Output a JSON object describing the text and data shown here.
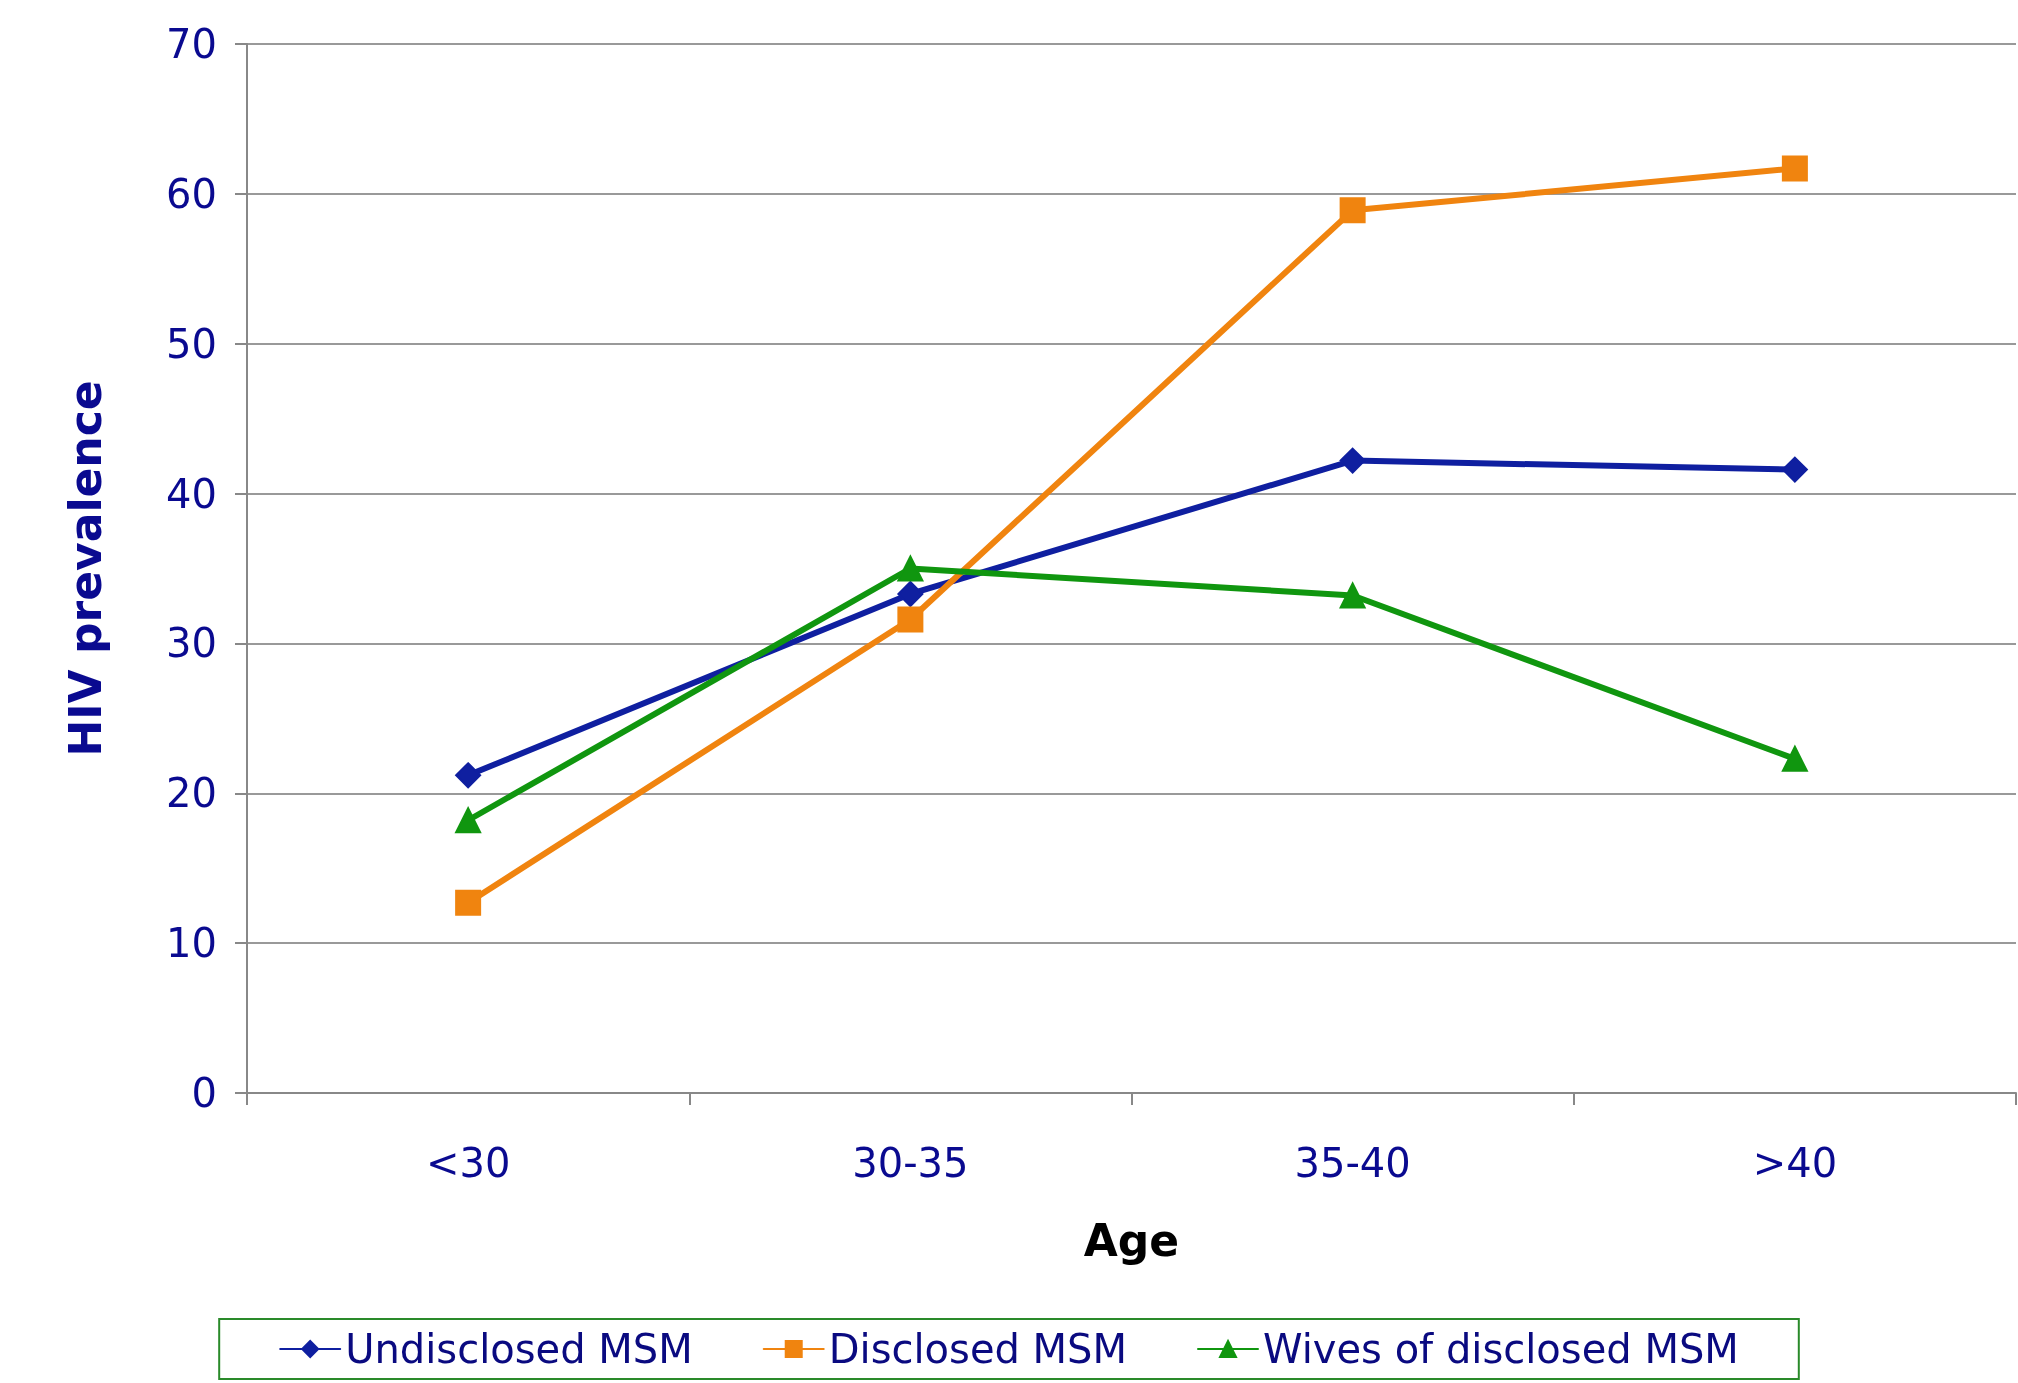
{
  "chart_data": {
    "type": "line",
    "xlabel": "Age",
    "ylabel": "HIV prevalence",
    "categories": [
      "<30",
      "30-35",
      "35-40",
      ">40"
    ],
    "series": [
      {
        "name": "Undisclosed MSM",
        "color": "#0f1fa0",
        "marker": "diamond",
        "values": [
          21.2,
          33.3,
          42.2,
          41.6
        ]
      },
      {
        "name": "Disclosed MSM",
        "color": "#f0840f",
        "marker": "square",
        "values": [
          12.7,
          31.6,
          58.9,
          61.7
        ]
      },
      {
        "name": "Wives of disclosed MSM",
        "color": "#10960f",
        "marker": "triangle",
        "values": [
          18.2,
          35.0,
          33.2,
          22.3
        ]
      }
    ],
    "ylim": [
      0,
      70
    ],
    "yticks": [
      0,
      10,
      20,
      30,
      40,
      50,
      60,
      70
    ],
    "grid": "y",
    "legend": "bottom",
    "line_style": "solid"
  }
}
